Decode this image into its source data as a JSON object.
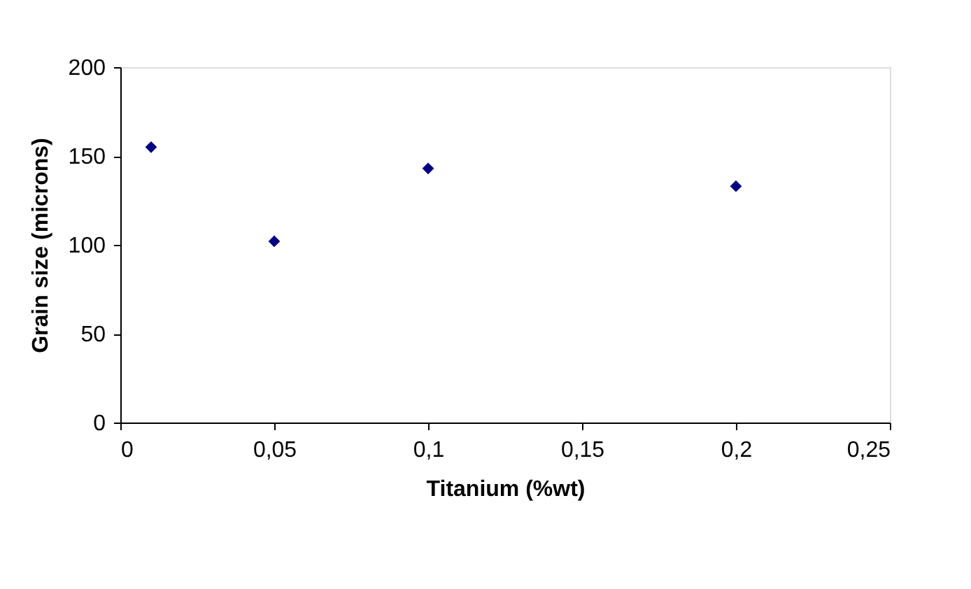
{
  "chart_data": {
    "type": "scatter",
    "xlabel": "Titanium (%wt)",
    "ylabel": "Grain size (microns)",
    "x": [
      0.01,
      0.05,
      0.1,
      0.2
    ],
    "series": [
      {
        "color": "#000080",
        "values": [
          155,
          102,
          143,
          133
        ]
      }
    ],
    "marker": "diamond",
    "grid": false,
    "legend": false,
    "xlim": [
      0,
      0.25
    ],
    "xticks": [
      0,
      {
        "value": 0.05,
        "label": "0,05"
      },
      {
        "value": 0.1,
        "label": "0,1"
      },
      {
        "value": 0.15,
        "label": "0,15"
      },
      {
        "value": 0.2,
        "label": "0,2"
      },
      {
        "value": 0.25,
        "label": "0,25"
      }
    ],
    "ylim": [
      0,
      200
    ],
    "yticks": [
      0,
      50,
      100,
      150,
      200
    ]
  }
}
